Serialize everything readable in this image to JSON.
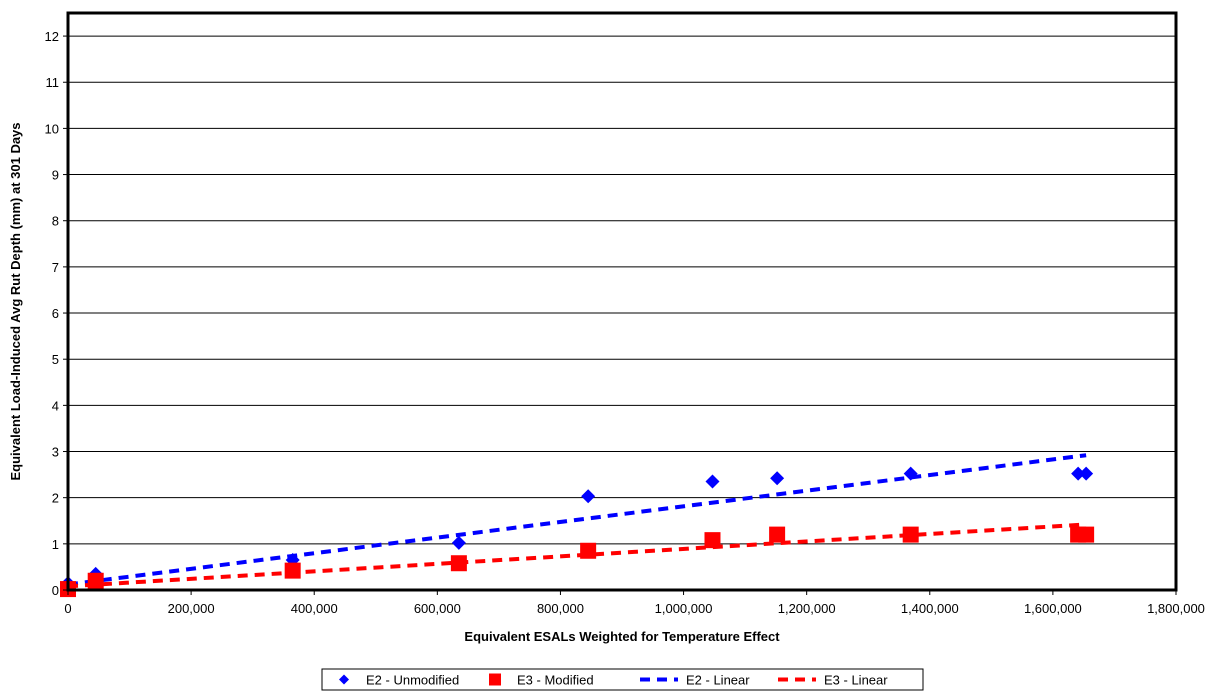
{
  "chart_data": {
    "type": "scatter",
    "title": "",
    "xlabel": "Equivalent ESALs Weighted for Temperature Effect",
    "ylabel": "Equivalent Load-Induced Avg Rut Depth (mm) at 301 Days",
    "xlim": [
      0,
      1800000
    ],
    "ylim": [
      0,
      12.5
    ],
    "xticks": [
      0,
      200000,
      400000,
      600000,
      800000,
      1000000,
      1200000,
      1400000,
      1600000,
      1800000
    ],
    "xtick_labels": [
      "0",
      "200,000",
      "400,000",
      "600,000",
      "800,000",
      "1,000,000",
      "1,200,000",
      "1,400,000",
      "1,600,000",
      "1,800,000"
    ],
    "yticks": [
      0,
      1,
      2,
      3,
      4,
      5,
      6,
      7,
      8,
      9,
      10,
      11,
      12
    ],
    "ytick_labels": [
      "0",
      "1",
      "2",
      "3",
      "4",
      "5",
      "6",
      "7",
      "8",
      "9",
      "10",
      "11",
      "12"
    ],
    "grid": "horizontal",
    "legend_position": "bottom",
    "series": [
      {
        "name": "E2 - Unmodified",
        "kind": "scatter",
        "marker": "diamond",
        "color": "#0000ff",
        "x": [
          0,
          45000,
          365000,
          635000,
          845000,
          1047000,
          1152000,
          1369000,
          1641000,
          1654000
        ],
        "y": [
          0.15,
          0.35,
          0.65,
          1.02,
          2.03,
          2.35,
          2.42,
          2.52,
          2.52,
          2.52
        ]
      },
      {
        "name": "E3 - Modified",
        "kind": "scatter",
        "marker": "square",
        "color": "#ff0000",
        "x": [
          0,
          45000,
          365000,
          635000,
          845000,
          1047000,
          1152000,
          1369000,
          1641000,
          1654000
        ],
        "y": [
          0.02,
          0.2,
          0.42,
          0.58,
          0.85,
          1.08,
          1.2,
          1.2,
          1.2,
          1.2
        ]
      },
      {
        "name": "E2 - Linear",
        "kind": "trendline",
        "color": "#0000ff",
        "x": [
          0,
          1654000
        ],
        "y": [
          0.12,
          2.92
        ]
      },
      {
        "name": "E3 - Linear",
        "kind": "trendline",
        "color": "#ff0000",
        "x": [
          0,
          1654000
        ],
        "y": [
          0.08,
          1.42
        ]
      }
    ]
  }
}
